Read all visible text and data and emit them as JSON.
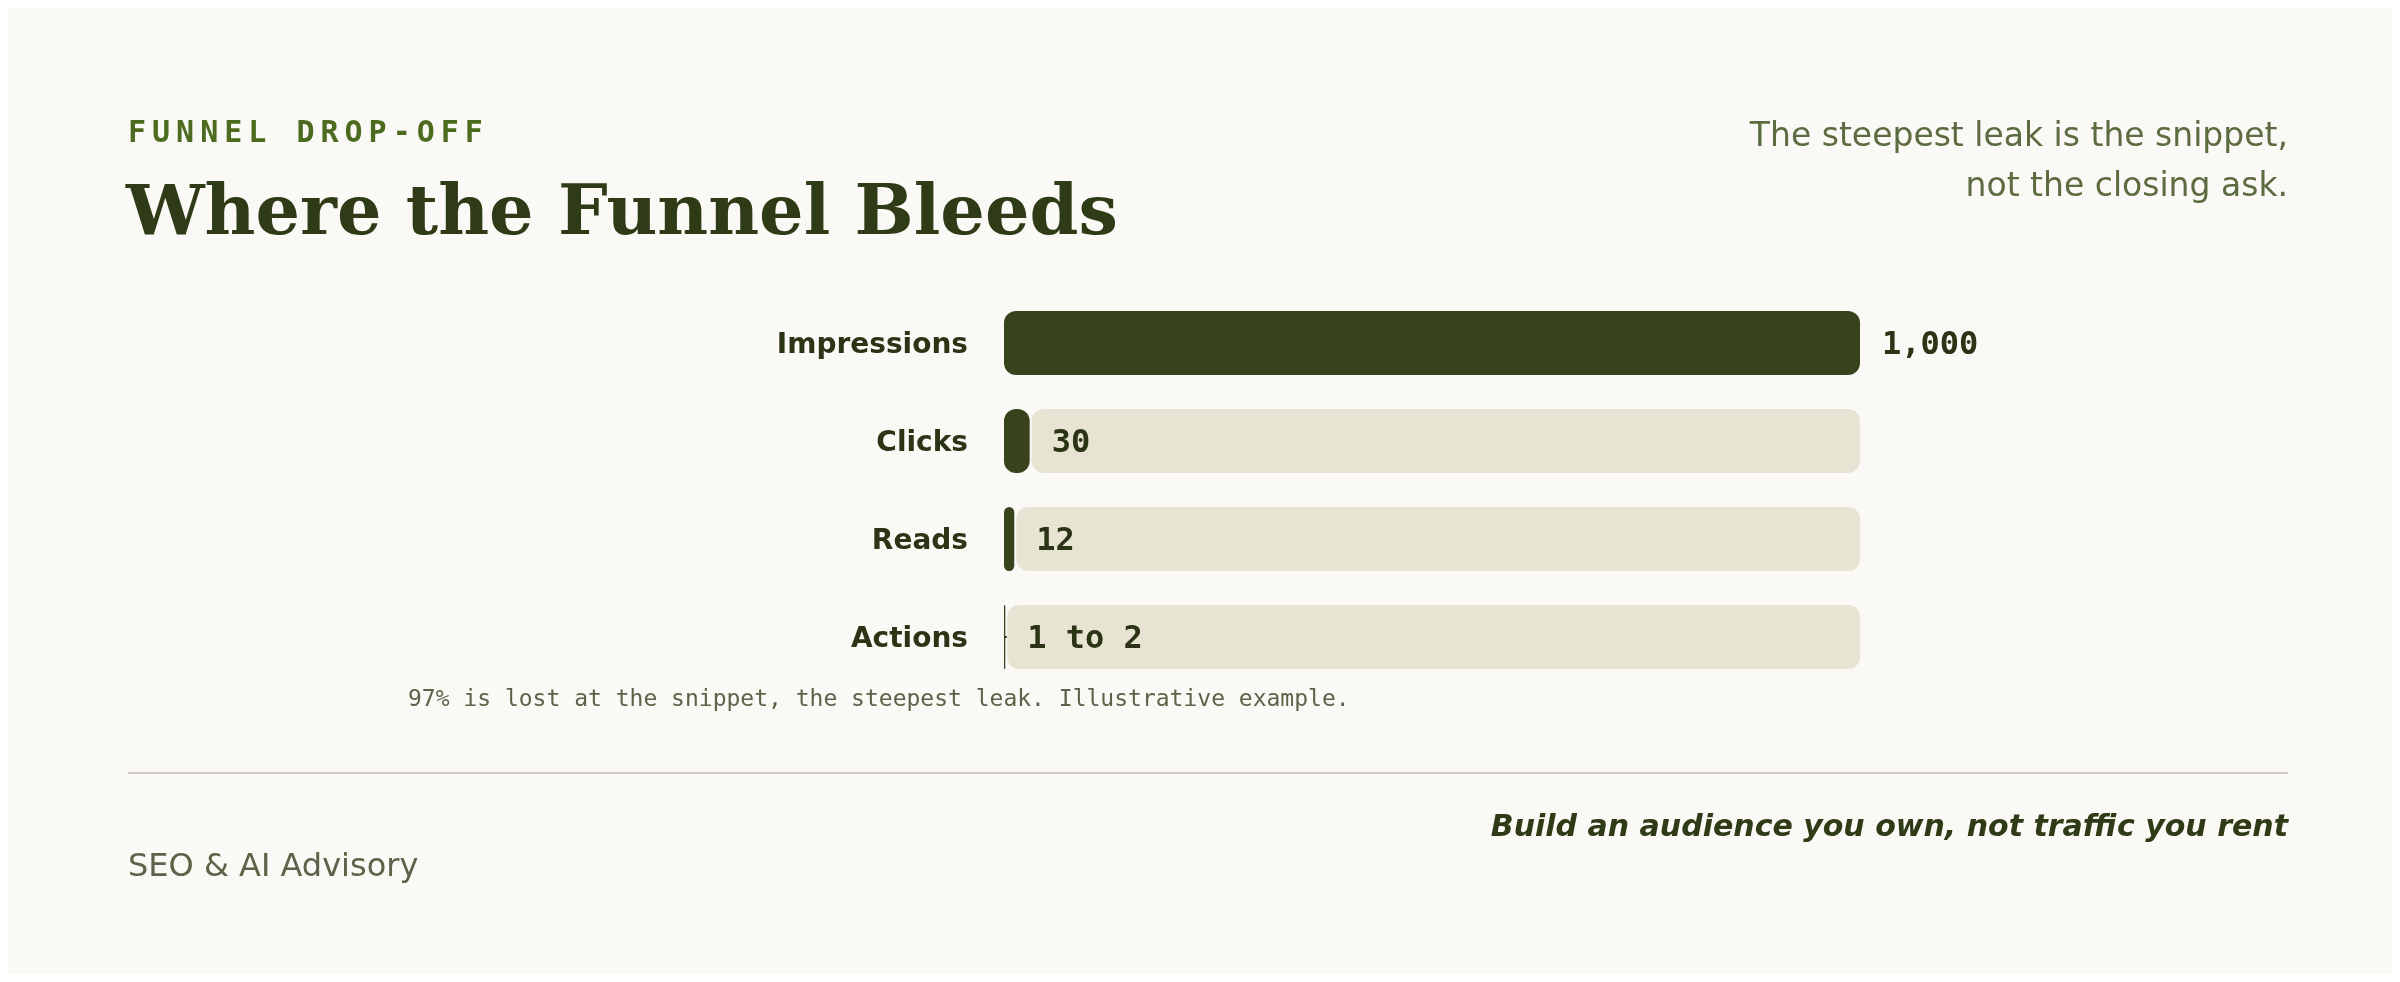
{
  "chart_data": {
    "type": "bar",
    "orientation": "horizontal",
    "title": "Where the Funnel Bleeds",
    "subtitle": "The steepest leak is the snippet, not the closing ask.",
    "categories": [
      "Impressions",
      "Clicks",
      "Reads",
      "Actions"
    ],
    "values": [
      1000,
      30,
      12,
      1.5
    ],
    "errors": [
      null,
      null,
      null,
      [
        1,
        2
      ]
    ],
    "value_labels": [
      "1,000",
      "30",
      "12",
      "1 to 2"
    ],
    "color": "#38431e",
    "annotations": [
      "FUNNEL DROP-OFF",
      "97% is lost at the snippet, the steepest leak. Illustrative example.",
      "SEO & AI Advisory",
      "Build an audience you own, not traffic you rent"
    ]
  }
}
